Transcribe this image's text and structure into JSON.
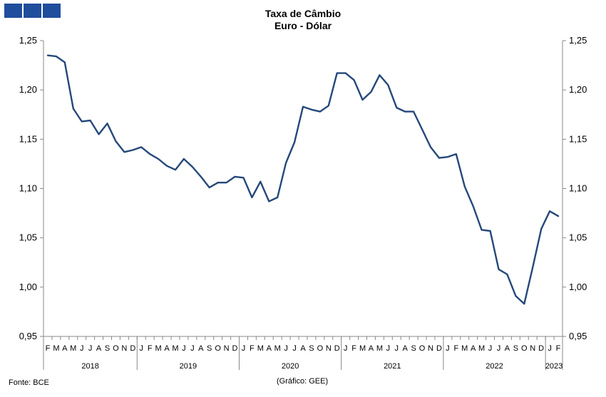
{
  "header": {
    "brand_color": "#1F4E9C",
    "blocks": 3
  },
  "chart_data": {
    "type": "line",
    "title": "Taxa de Câmbio",
    "subtitle": "Euro - Dólar",
    "line_color": "#25487A",
    "y_ticks": [
      "1,25",
      "1,20",
      "1,15",
      "1,10",
      "1,05",
      "1,00",
      "0,95"
    ],
    "ylim": [
      0.95,
      1.25
    ],
    "grid": false,
    "month_labels": [
      "F",
      "M",
      "A",
      "M",
      "J",
      "J",
      "A",
      "S",
      "O",
      "N",
      "D",
      "J",
      "F",
      "M",
      "A",
      "M",
      "J",
      "J",
      "A",
      "S",
      "O",
      "N",
      "D",
      "J",
      "F",
      "M",
      "A",
      "M",
      "J",
      "J",
      "A",
      "S",
      "O",
      "N",
      "D",
      "J",
      "F",
      "M",
      "A",
      "M",
      "J",
      "J",
      "A",
      "S",
      "O",
      "N",
      "D",
      "J",
      "F",
      "M",
      "A",
      "M",
      "J",
      "J",
      "A",
      "S",
      "O",
      "N",
      "D",
      "J",
      "F"
    ],
    "year_labels": [
      {
        "label": "2018",
        "start": 0,
        "end": 10
      },
      {
        "label": "2019",
        "start": 11,
        "end": 22
      },
      {
        "label": "2020",
        "start": 23,
        "end": 34
      },
      {
        "label": "2021",
        "start": 35,
        "end": 46
      },
      {
        "label": "2022",
        "start": 47,
        "end": 58
      },
      {
        "label": "2023",
        "start": 59,
        "end": 60
      }
    ],
    "series": [
      {
        "values": [
          1.235,
          1.234,
          1.228,
          1.181,
          1.168,
          1.169,
          1.155,
          1.166,
          1.148,
          1.137,
          1.139,
          1.142,
          1.135,
          1.13,
          1.123,
          1.119,
          1.13,
          1.122,
          1.112,
          1.101,
          1.106,
          1.106,
          1.112,
          1.111,
          1.091,
          1.107,
          1.087,
          1.091,
          1.126,
          1.147,
          1.183,
          1.18,
          1.178,
          1.184,
          1.217,
          1.217,
          1.21,
          1.19,
          1.198,
          1.215,
          1.205,
          1.182,
          1.178,
          1.178,
          1.16,
          1.142,
          1.131,
          1.132,
          1.135,
          1.102,
          1.082,
          1.058,
          1.057,
          1.018,
          1.013,
          0.991,
          0.983,
          1.02,
          1.059,
          1.077,
          1.072
        ]
      }
    ]
  },
  "footer": {
    "source": "Fonte: BCE",
    "credit": "(Gráfico: GEE)"
  }
}
